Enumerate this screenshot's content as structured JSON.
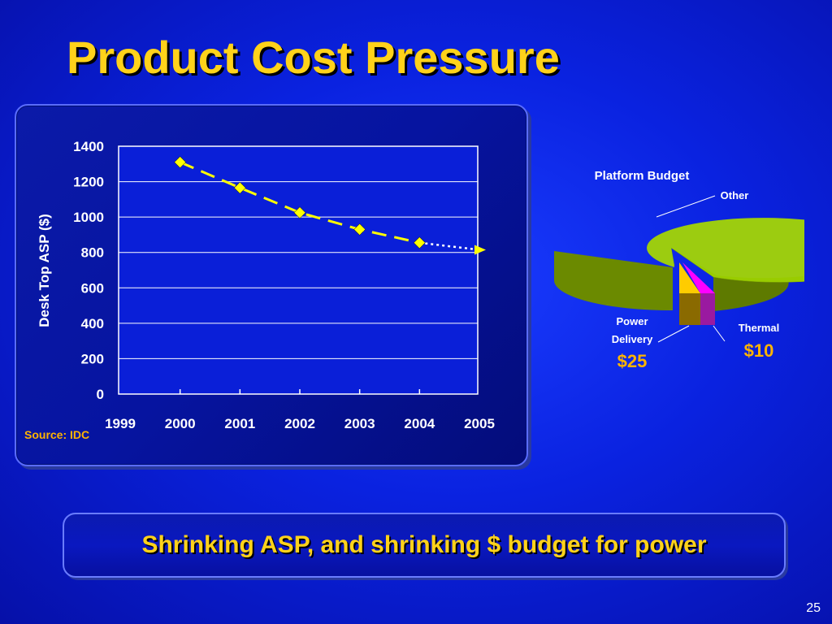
{
  "slide": {
    "title": "Product Cost Pressure",
    "source": "Source: IDC",
    "footer_statement": "Shrinking ASP, and shrinking $ budget for power",
    "page_number": "25"
  },
  "chart_data": [
    {
      "type": "line",
      "title": "",
      "xlabel": "",
      "ylabel": "Desk Top ASP ($)",
      "x_categories": [
        "1999",
        "2000",
        "2001",
        "2002",
        "2003",
        "2004",
        "2005"
      ],
      "ylim": [
        0,
        1400
      ],
      "yticks": [
        0,
        200,
        400,
        600,
        800,
        1000,
        1200,
        1400
      ],
      "grid": true,
      "series": [
        {
          "line_style": "dashed",
          "color": "#ffff00",
          "marker": "diamond",
          "x": [
            2000,
            2001,
            2002,
            2003,
            2004
          ],
          "y": [
            1310,
            1165,
            1025,
            930,
            855
          ]
        },
        {
          "line_style": "dotted",
          "color": "#ffffff",
          "marker": "triangle",
          "x": [
            2004,
            2005
          ],
          "y": [
            855,
            815
          ]
        }
      ]
    },
    {
      "type": "pie",
      "title": "Platform Budget",
      "slices": [
        {
          "label": "Other",
          "value": null,
          "color": "#99cc00"
        },
        {
          "label": "Power Delivery",
          "value_label": "$25",
          "value": 25,
          "color": "#ffcc00"
        },
        {
          "label": "Thermal",
          "value_label": "$10",
          "value": 10,
          "color": "#ff00ff"
        }
      ]
    }
  ],
  "colors": {
    "title": "#ffd21a",
    "accent_orange": "#ffb400",
    "plot_area": "#0a1fd8",
    "grid": "#ffffff"
  }
}
